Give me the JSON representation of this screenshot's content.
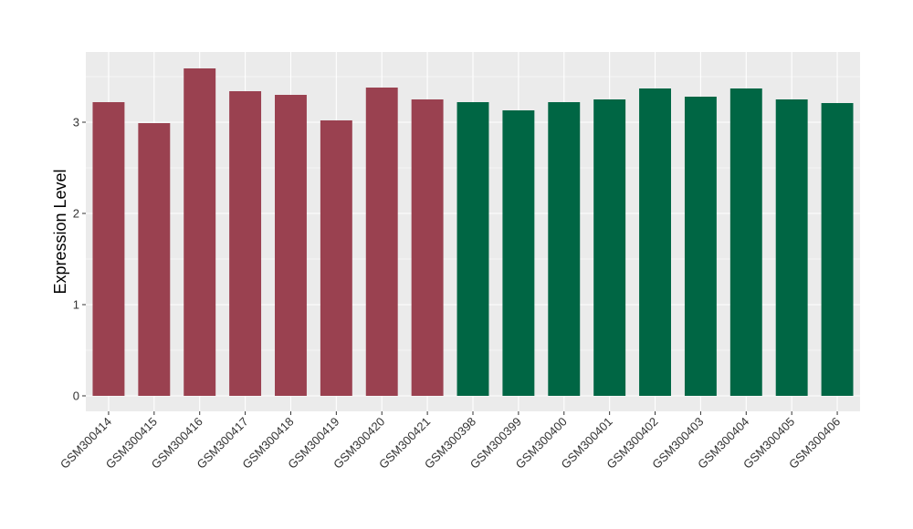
{
  "chart_data": {
    "type": "bar",
    "title": "",
    "xlabel": "",
    "ylabel": "Expression Level",
    "ylim": [
      -0.17,
      3.77
    ],
    "yticks": [
      0,
      1,
      2,
      3
    ],
    "grid": true,
    "categories": [
      "GSM300414",
      "GSM300415",
      "GSM300416",
      "GSM300417",
      "GSM300418",
      "GSM300419",
      "GSM300420",
      "GSM300421",
      "GSM300398",
      "GSM300399",
      "GSM300400",
      "GSM300401",
      "GSM300402",
      "GSM300403",
      "GSM300404",
      "GSM300405",
      "GSM300406"
    ],
    "values": [
      3.22,
      2.99,
      3.59,
      3.34,
      3.3,
      3.02,
      3.38,
      3.25,
      3.22,
      3.13,
      3.22,
      3.25,
      3.37,
      3.28,
      3.37,
      3.25,
      3.21
    ],
    "bar_colors": [
      "#9a4150",
      "#9a4150",
      "#9a4150",
      "#9a4150",
      "#9a4150",
      "#9a4150",
      "#9a4150",
      "#9a4150",
      "#006644",
      "#006644",
      "#006644",
      "#006644",
      "#006644",
      "#006644",
      "#006644",
      "#006644",
      "#006644"
    ],
    "panel_background": "#ebebeb",
    "grid_color": "#ffffff"
  }
}
